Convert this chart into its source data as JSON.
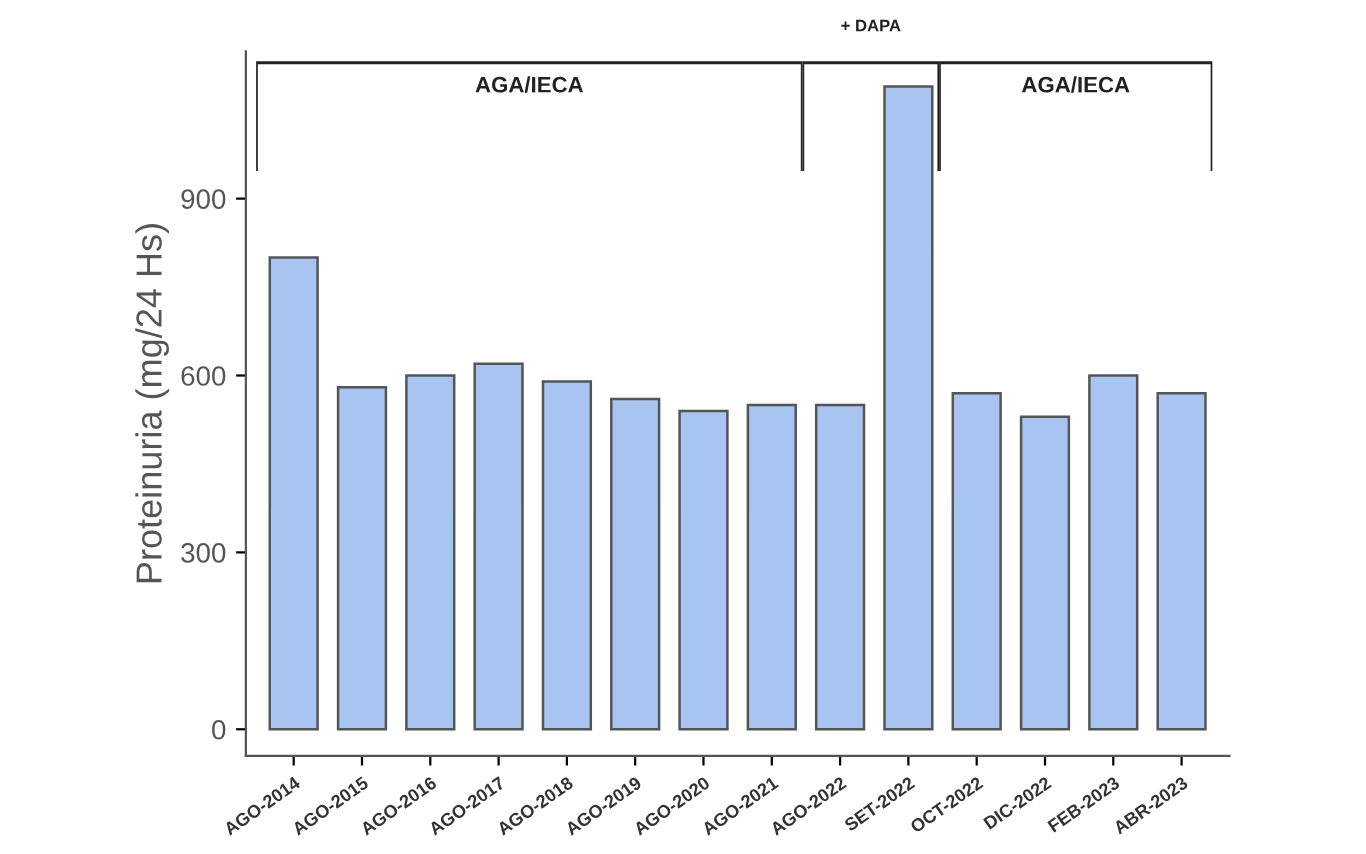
{
  "chart_data": {
    "type": "bar",
    "ylabel": "Proteinuria (mg/24 Hs)",
    "categories": [
      "AGO-2014",
      "AGO-2015",
      "AGO-2016",
      "AGO-2017",
      "AGO-2018",
      "AGO-2019",
      "AGO-2020",
      "AGO-2021",
      "AGO-2022",
      "SET-2022",
      "OCT-2022",
      "DIC-2022",
      "FEB-2023",
      "ABR-2023"
    ],
    "values": [
      800,
      580,
      600,
      620,
      590,
      560,
      540,
      550,
      550,
      1090,
      570,
      530,
      600,
      570
    ],
    "color": "#a8c4f0",
    "ylim": [
      -45,
      1150
    ],
    "yticks": [
      0,
      300,
      600,
      900
    ],
    "grid": false,
    "annotations": [
      "AGA/IECA",
      "+ DAPA",
      "AGA/IECA"
    ]
  }
}
